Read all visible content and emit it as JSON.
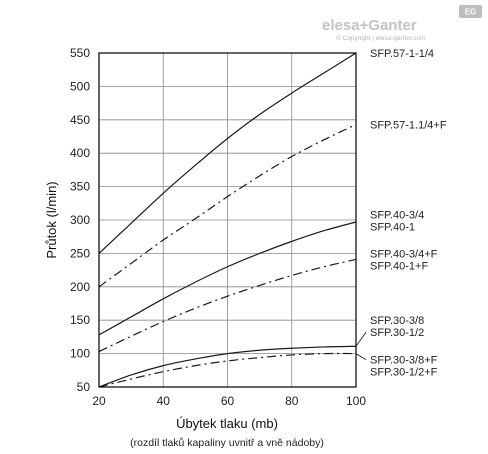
{
  "logo": {
    "brand": "elesa+Ganter",
    "badge": "EG",
    "copyright": "© Copyright | elesa-ganter.com"
  },
  "chart_data": {
    "type": "line",
    "xlabel": "Úbytek tlaku (mb)",
    "xlabel_sub": "(rozdíl tlaků kapaliny uvnitř a vně nádoby)",
    "ylabel": "Průtok (l/min)",
    "xlim": [
      20,
      100
    ],
    "ylim": [
      50,
      550
    ],
    "x_ticks": [
      20,
      40,
      60,
      80,
      100
    ],
    "y_ticks": [
      50,
      100,
      150,
      200,
      250,
      300,
      350,
      400,
      450,
      500,
      550
    ],
    "grid": true,
    "series": [
      {
        "name": "SFP.57-1-1/4",
        "style": "solid",
        "x": [
          20,
          30,
          40,
          50,
          60,
          70,
          80,
          90,
          100
        ],
        "y": [
          250,
          295,
          340,
          382,
          422,
          458,
          490,
          520,
          550
        ]
      },
      {
        "name": "SFP.57-1.1/4+F",
        "style": "dashdot",
        "x": [
          20,
          30,
          40,
          50,
          60,
          70,
          80,
          90,
          100
        ],
        "y": [
          200,
          235,
          270,
          302,
          335,
          366,
          395,
          420,
          443
        ]
      },
      {
        "name": "SFP.40-3/4 / SFP.40-1",
        "style": "solid",
        "x": [
          20,
          30,
          40,
          50,
          60,
          70,
          80,
          90,
          100
        ],
        "y": [
          128,
          155,
          182,
          207,
          230,
          250,
          268,
          284,
          297
        ]
      },
      {
        "name": "SFP.40-3/4+F / SFP.40-1+F",
        "style": "dashdot",
        "x": [
          20,
          30,
          40,
          50,
          60,
          70,
          80,
          90,
          100
        ],
        "y": [
          103,
          126,
          148,
          168,
          186,
          202,
          217,
          230,
          241
        ]
      },
      {
        "name": "SFP.30-3/8 / SFP.30-1/2",
        "style": "solid",
        "x": [
          20,
          30,
          40,
          50,
          60,
          70,
          80,
          90,
          100
        ],
        "y": [
          50,
          68,
          82,
          92,
          100,
          105,
          108,
          110,
          111
        ]
      },
      {
        "name": "SFP.30-3/8+F / SFP.30-1/2+F",
        "style": "dashdot",
        "x": [
          20,
          30,
          40,
          50,
          60,
          70,
          80,
          90,
          100
        ],
        "y": [
          50,
          62,
          73,
          82,
          89,
          94,
          98,
          100,
          100
        ]
      }
    ],
    "labels": [
      {
        "text": "SFP.57-1-1/4",
        "y": 550
      },
      {
        "text": "SFP.57-1.1/4+F",
        "y": 443
      },
      {
        "text": "SFP.40-3/4",
        "y": 308
      },
      {
        "text": "SFP.40-1",
        "y": 290
      },
      {
        "text": "SFP.40-3/4+F",
        "y": 250
      },
      {
        "text": "SFP.40-1+F",
        "y": 232
      },
      {
        "text": "SFP.30-3/8",
        "y": 150
      },
      {
        "text": "SFP.30-1/2",
        "y": 132
      },
      {
        "text": "SFP.30-3/8+F",
        "y": 91
      },
      {
        "text": "SFP.30-1/2+F",
        "y": 73
      }
    ]
  }
}
